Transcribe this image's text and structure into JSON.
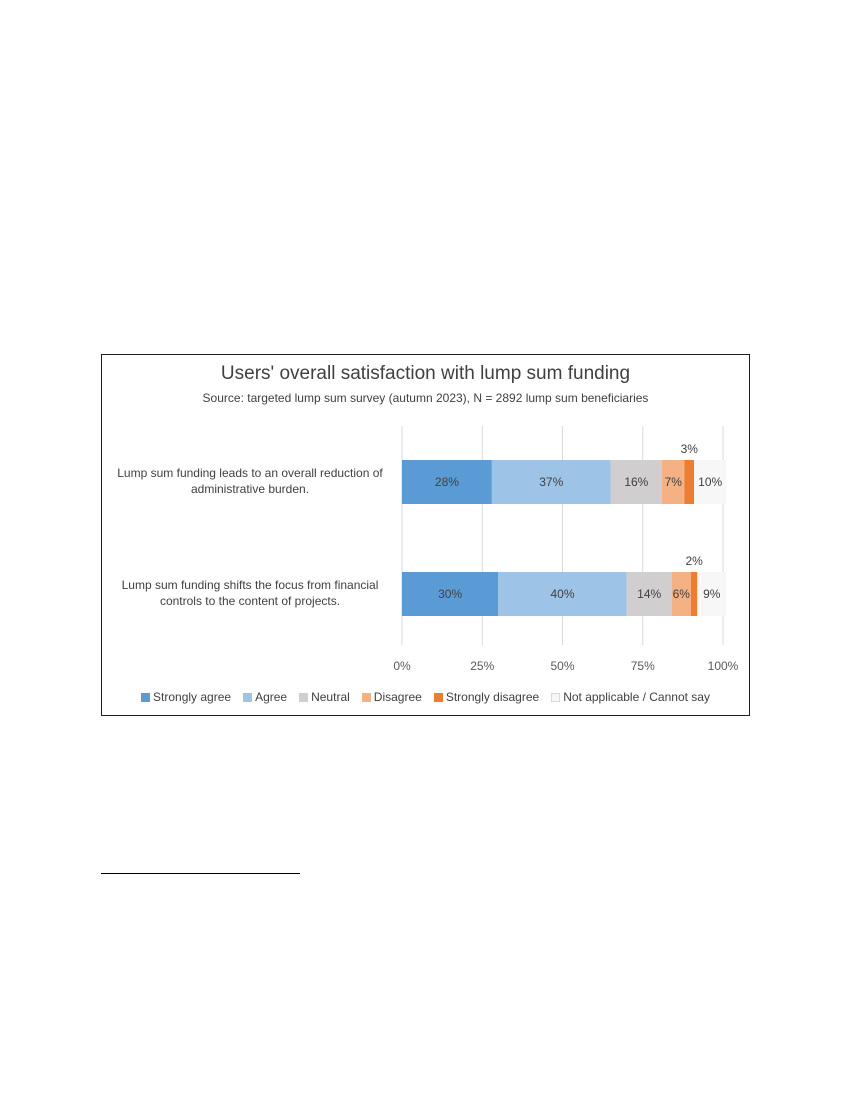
{
  "chart_data": {
    "type": "bar",
    "orientation": "horizontal",
    "stacked": true,
    "title": "Users' overall satisfaction with lump sum funding",
    "subtitle": "Source: targeted lump sum survey (autumn 2023), N = 2892 lump sum beneficiaries",
    "categories": [
      [
        "Lump sum funding leads to an overall reduction of",
        "administrative burden."
      ],
      [
        "Lump sum funding shifts the focus from financial",
        "controls to the content of projects."
      ]
    ],
    "series": [
      {
        "name": "Strongly agree",
        "color": "#5b9bd5",
        "values": [
          28,
          30
        ],
        "labels": [
          "28%",
          "30%"
        ]
      },
      {
        "name": "Agree",
        "color": "#9dc3e6",
        "values": [
          37,
          40
        ],
        "labels": [
          "37%",
          "40%"
        ]
      },
      {
        "name": "Neutral",
        "color": "#d0cece",
        "values": [
          16,
          14
        ],
        "labels": [
          "16%",
          "14%"
        ]
      },
      {
        "name": "Disagree",
        "color": "#f4b183",
        "values": [
          7,
          6
        ],
        "labels": [
          "7%",
          "6%"
        ]
      },
      {
        "name": "Strongly disagree",
        "color": "#ed7d31",
        "values": [
          3,
          2
        ],
        "labels": [
          "3%",
          "2%"
        ]
      },
      {
        "name": "Not applicable / Cannot say",
        "color": "#f7f7f7",
        "values": [
          10,
          9
        ],
        "labels": [
          "10%",
          "9%"
        ]
      }
    ],
    "xticks": [
      "0%",
      "25%",
      "50%",
      "75%",
      "100%"
    ],
    "xlim": [
      0,
      100
    ],
    "grid": true,
    "legend_position": "bottom"
  }
}
